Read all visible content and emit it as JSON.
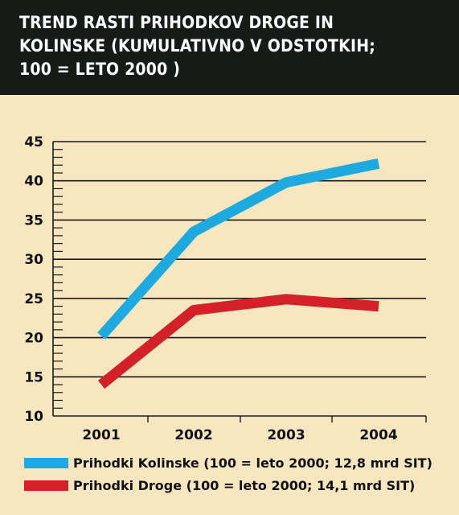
{
  "header": {
    "title": "TREND RASTI PRIHODKOV DROGE IN\nKOLINSKE (KUMULATIVNO V ODSTOTKIH;\n100 = LETO 2000 )"
  },
  "chart_data": {
    "type": "line",
    "title": "TREND RASTI PRIHODKOV DROGE IN KOLINSKE (KUMULATIVNO V ODSTOTKIH; 100 = LETO 2000 )",
    "xlabel": "",
    "ylabel": "",
    "categories": [
      "2001",
      "2002",
      "2003",
      "2004"
    ],
    "ylim": [
      10,
      45
    ],
    "yticks": [
      "10",
      "15",
      "20",
      "25",
      "30",
      "35",
      "40",
      "45"
    ],
    "grid": true,
    "legend_position": "bottom",
    "series": [
      {
        "name": "Prihodki Kolinske (100 = leto 2000; 12,8 mrd SIT)",
        "values": [
          20.2,
          33.5,
          39.8,
          42.2
        ],
        "color": "#1eaadf"
      },
      {
        "name": "Prihodki Droge (100 = leto 2000; 14,1 mrd SIT)",
        "values": [
          14.0,
          23.5,
          24.9,
          24.0
        ],
        "color": "#d3212a"
      }
    ]
  }
}
